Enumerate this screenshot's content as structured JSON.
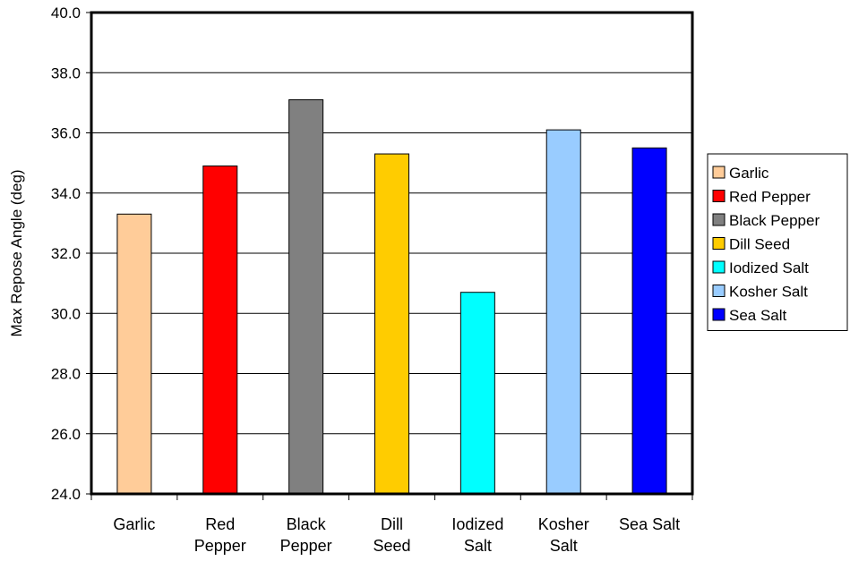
{
  "chart_data": {
    "type": "bar",
    "title": "",
    "xlabel": "",
    "ylabel": "Max Repose Angle (deg)",
    "ylim": [
      24.0,
      40.0
    ],
    "ytick_step": 2.0,
    "ytick_labels": [
      "24.0",
      "26.0",
      "28.0",
      "30.0",
      "32.0",
      "34.0",
      "36.0",
      "38.0",
      "40.0"
    ],
    "grid": true,
    "legend_position": "right",
    "categories": [
      {
        "name": "Garlic",
        "label_lines": [
          "Garlic"
        ],
        "value": 33.3,
        "color": "#FFCC99"
      },
      {
        "name": "Red Pepper",
        "label_lines": [
          "Red",
          "Pepper"
        ],
        "value": 34.9,
        "color": "#FF0000"
      },
      {
        "name": "Black Pepper",
        "label_lines": [
          "Black",
          "Pepper"
        ],
        "value": 37.1,
        "color": "#808080"
      },
      {
        "name": "Dill Seed",
        "label_lines": [
          "Dill",
          "Seed"
        ],
        "value": 35.3,
        "color": "#FFCC00"
      },
      {
        "name": "Iodized Salt",
        "label_lines": [
          "Iodized",
          "Salt"
        ],
        "value": 30.7,
        "color": "#00FFFF"
      },
      {
        "name": "Kosher Salt",
        "label_lines": [
          "Kosher",
          "Salt"
        ],
        "value": 36.1,
        "color": "#99CCFF"
      },
      {
        "name": "Sea Salt",
        "label_lines": [
          "Sea Salt"
        ],
        "value": 35.5,
        "color": "#0000FF"
      }
    ]
  }
}
